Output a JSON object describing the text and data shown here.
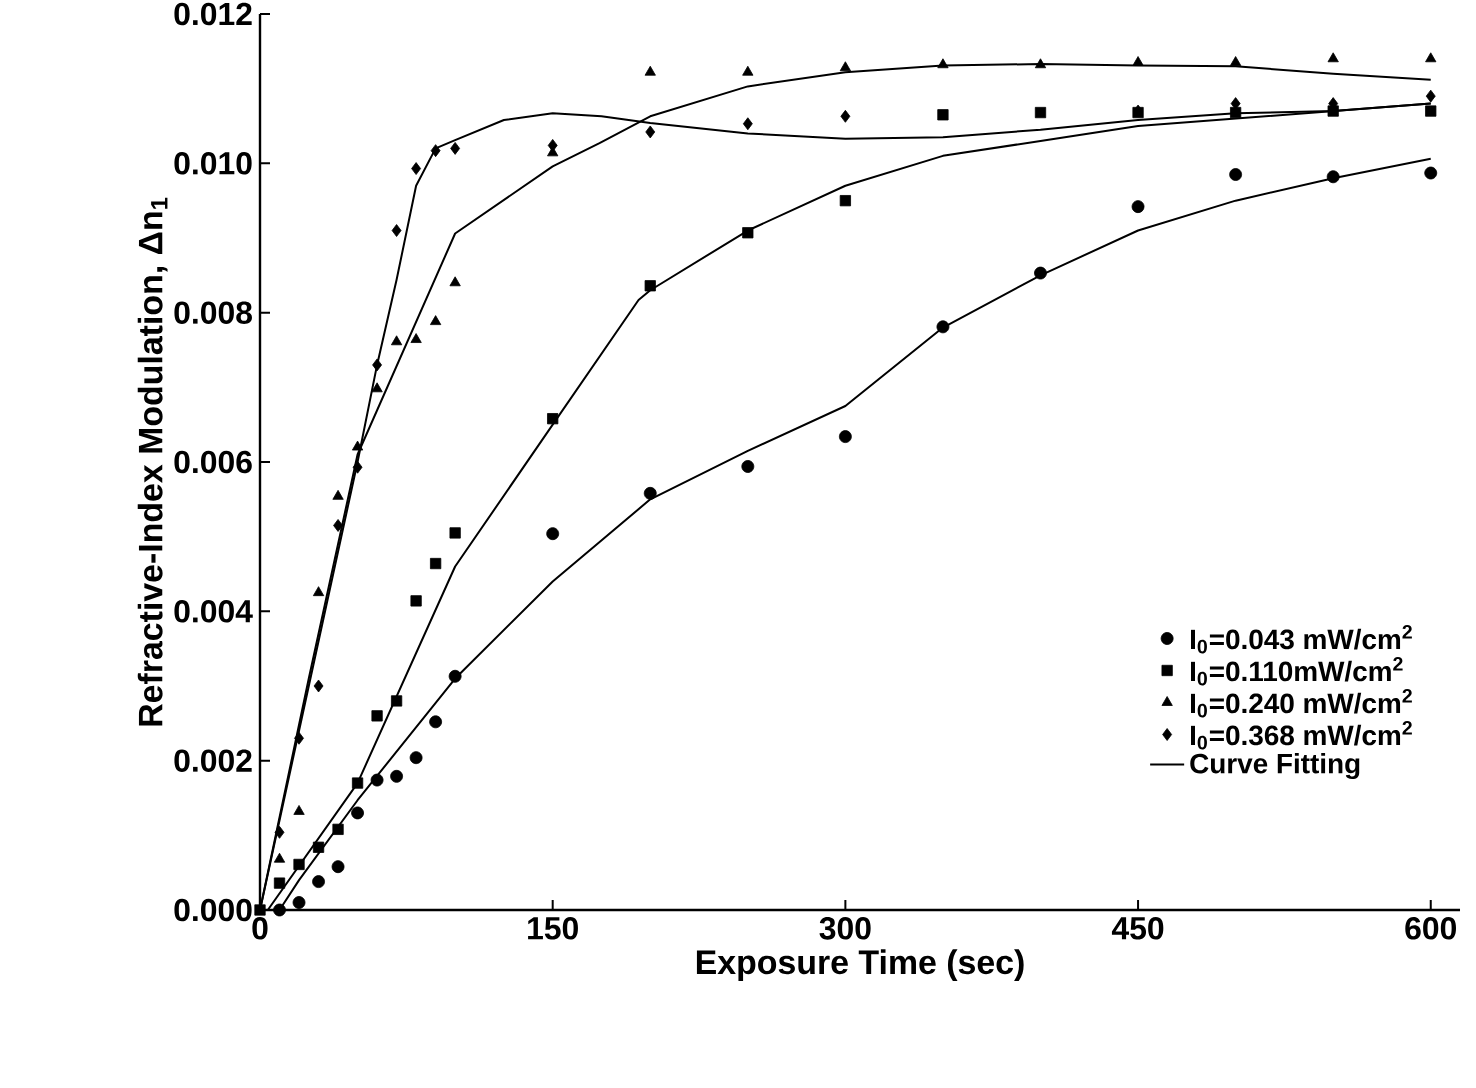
{
  "chart_data": {
    "type": "scatter",
    "xlabel": "Exposure Time (sec)",
    "ylabel": "Refractive-Index Modulation, Δn$_{1}$",
    "xlim": [
      0,
      615
    ],
    "ylim": [
      0,
      0.012
    ],
    "xticks": [
      0,
      150,
      300,
      450,
      600
    ],
    "yticks": [
      {
        "value": 0,
        "label": "0.000"
      },
      {
        "value": 0.002,
        "label": "0.002"
      },
      {
        "value": 0.004,
        "label": "0.004"
      },
      {
        "value": 0.006,
        "label": "0.006"
      },
      {
        "value": 0.008,
        "label": "0.008"
      },
      {
        "value": 0.01,
        "label": "0.010"
      },
      {
        "value": 0.012,
        "label": "0.012"
      }
    ],
    "legend": "bottom right",
    "grid": false,
    "series": [
      {
        "name": "I$_{0}$=0.043 mW/cm$^{2}$",
        "marker": "circle",
        "color": "#000000",
        "x": [
          10,
          20,
          30,
          40,
          50,
          60,
          70,
          80,
          90,
          100,
          150,
          200,
          250,
          300,
          350,
          400,
          450,
          500,
          550,
          600
        ],
        "values": [
          0,
          0.0001,
          0.00038,
          0.00058,
          0.0013,
          0.00174,
          0.00179,
          0.00204,
          0.00252,
          0.00313,
          0.00504,
          0.00558,
          0.00594,
          0.00634,
          0.00781,
          0.00853,
          0.00942,
          0.00985,
          0.00982,
          0.00987
        ]
      },
      {
        "name": "I$_{0}$=0.110mW/cm$^{2}$",
        "marker": "square",
        "color": "#000000",
        "x": [
          0,
          10,
          20,
          30,
          40,
          50,
          60,
          70,
          80,
          90,
          100,
          150,
          200,
          250,
          300,
          350,
          400,
          450,
          500,
          550,
          600
        ],
        "values": [
          0,
          0.00036,
          0.00061,
          0.00084,
          0.00108,
          0.0017,
          0.0026,
          0.0028,
          0.00414,
          0.00464,
          0.00505,
          0.00658,
          0.00836,
          0.00907,
          0.0095,
          0.01065,
          0.01068,
          0.01068,
          0.01068,
          0.0107,
          0.0107
        ]
      },
      {
        "name": "I$_{0}$=0.240 mW/cm$^{2}$",
        "marker": "triangle",
        "color": "#000000",
        "x": [
          10,
          20,
          30,
          40,
          50,
          60,
          70,
          80,
          90,
          100,
          150,
          200,
          250,
          300,
          350,
          400,
          450,
          500,
          550,
          600
        ],
        "values": [
          0.00068,
          0.00132,
          0.00425,
          0.00554,
          0.0062,
          0.00698,
          0.00761,
          0.00764,
          0.00788,
          0.0084,
          0.01014,
          0.01122,
          0.01122,
          0.01128,
          0.01132,
          0.01132,
          0.01135,
          0.01135,
          0.0114,
          0.0114
        ]
      },
      {
        "name": "I$_{0}$=0.368 mW/cm$^{2}$",
        "marker": "diamond",
        "color": "#000000",
        "x": [
          10,
          20,
          30,
          40,
          50,
          60,
          70,
          80,
          90,
          100,
          150,
          200,
          250,
          300,
          350,
          400,
          450,
          500,
          550,
          600
        ],
        "values": [
          0.00104,
          0.0023,
          0.003,
          0.00515,
          0.00593,
          0.0073,
          0.0091,
          0.00993,
          0.01017,
          0.0102,
          0.01024,
          0.01042,
          0.01053,
          0.01063,
          null,
          null,
          0.0107,
          0.0108,
          0.0108,
          0.0109
        ]
      },
      {
        "name": "Curve Fitting",
        "type": "line",
        "marker": "none",
        "line_style": "solid",
        "color": "#000000",
        "x": [
          10,
          20,
          50,
          100,
          150,
          200,
          250,
          300,
          350,
          400,
          450,
          500,
          550,
          600
        ],
        "values": [
          0,
          0.0004,
          0.00147,
          0.0031,
          0.0044,
          0.0055,
          0.00615,
          0.00675,
          0.0078,
          0.0085,
          0.0091,
          0.0095,
          0.0098,
          0.01006
        ]
      },
      {
        "type": "line",
        "marker": "none",
        "line_style": "solid",
        "color": "#000000",
        "x": [
          4,
          50,
          100,
          150,
          194,
          200,
          250,
          300,
          350,
          400,
          450,
          500,
          550,
          600
        ],
        "values": [
          0,
          0.0017,
          0.0046,
          0.0065,
          0.00817,
          0.0083,
          0.0091,
          0.0097,
          0.0101,
          0.0103,
          0.0105,
          0.0106,
          0.0107,
          0.0108
        ]
      },
      {
        "type": "line",
        "marker": "none",
        "line_style": "solid",
        "color": "#000000",
        "x": [
          0,
          25,
          50,
          100,
          150,
          174,
          200,
          250,
          300,
          350,
          400,
          450,
          500,
          550,
          600
        ],
        "values": [
          0,
          0.0031,
          0.0061,
          0.00906,
          0.00996,
          0.01027,
          0.01063,
          0.01103,
          0.01122,
          0.01131,
          0.01133,
          0.01131,
          0.0113,
          0.0112,
          0.01112
        ]
      },
      {
        "type": "line",
        "marker": "none",
        "line_style": "solid",
        "color": "#000000",
        "x": [
          0,
          25,
          50,
          60,
          70,
          80,
          90,
          100,
          125,
          150,
          175,
          200,
          250,
          300,
          350,
          400,
          450,
          500,
          550,
          600
        ],
        "values": [
          0,
          0.003,
          0.006,
          0.0073,
          0.00844,
          0.0097,
          0.0102,
          0.01031,
          0.01058,
          0.01067,
          0.01063,
          0.01054,
          0.0104,
          0.01033,
          0.01035,
          0.01045,
          0.01058,
          0.01067,
          0.0107,
          0.0108
        ]
      }
    ]
  }
}
